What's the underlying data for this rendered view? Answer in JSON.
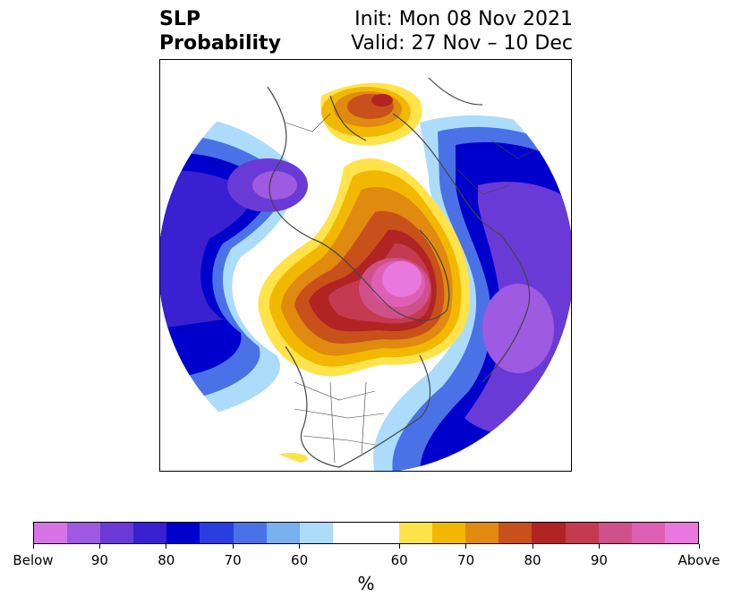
{
  "title": {
    "left_line1": "SLP",
    "left_line2": "Probability",
    "right_line1": "Init: Mon 08 Nov 2021",
    "right_line2": "Valid: 27 Nov – 10 Dec"
  },
  "map": {
    "projection": "north-polar-stereographic",
    "regions": [
      {
        "name": "above-normal-core-greenland-arctic",
        "category": "Above",
        "level": 90
      },
      {
        "name": "above-normal-north-atlantic-europe",
        "category": "Above",
        "level": 75
      },
      {
        "name": "below-normal-east-siberia-pacific",
        "category": "Below",
        "level": 85
      },
      {
        "name": "below-normal-north-pacific",
        "category": "Below",
        "level": 80
      },
      {
        "name": "below-normal-western-pacific-asia",
        "category": "Below",
        "level": 85
      }
    ]
  },
  "colorbar": {
    "colors": [
      "#d674e6",
      "#9e5ae0",
      "#6a3ad6",
      "#3a20d0",
      "#0000cc",
      "#2a3ee0",
      "#4a72e6",
      "#78b0f0",
      "#acdcfa",
      "#ffffff",
      "#ffffff",
      "#ffe34a",
      "#f2b800",
      "#e08a10",
      "#c8501a",
      "#b02424",
      "#c43a50",
      "#d0508a",
      "#de60b4",
      "#e878dc"
    ],
    "labels": [
      "Below",
      "90",
      "80",
      "70",
      "60",
      "60",
      "70",
      "80",
      "90",
      "Above"
    ],
    "unit": "%"
  }
}
